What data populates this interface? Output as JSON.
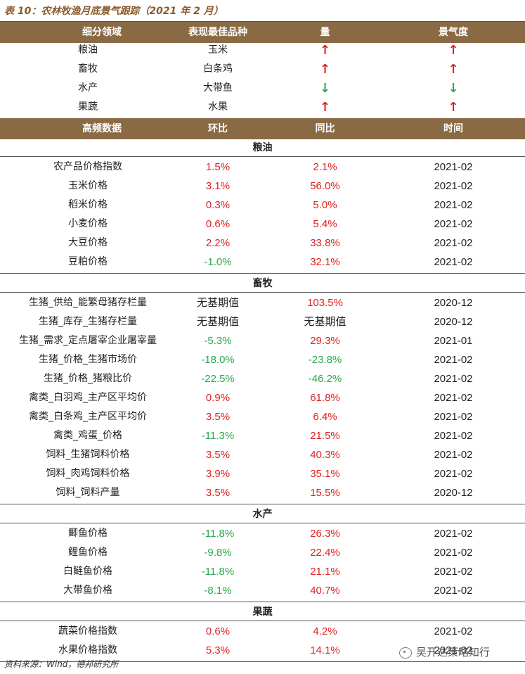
{
  "title": "表 10：农林牧渔月底景气跟踪（2021 年 2 月）",
  "summary": {
    "headers": [
      "细分领域",
      "表现最佳品种",
      "量",
      "景气度"
    ],
    "rows": [
      {
        "sector": "粮油",
        "best": "玉米",
        "volume": "↑",
        "volume_dir": "up",
        "climate": "↑",
        "climate_dir": "up"
      },
      {
        "sector": "畜牧",
        "best": "白条鸡",
        "volume": "↑",
        "volume_dir": "up",
        "climate": "↑",
        "climate_dir": "up"
      },
      {
        "sector": "水产",
        "best": "大带鱼",
        "volume": "↓",
        "volume_dir": "down",
        "climate": "↓",
        "climate_dir": "down"
      },
      {
        "sector": "果蔬",
        "best": "水果",
        "volume": "↑",
        "volume_dir": "up",
        "climate": "↑",
        "climate_dir": "up"
      }
    ]
  },
  "detail": {
    "headers": [
      "高频数据",
      "环比",
      "同比",
      "时间"
    ],
    "sections": [
      {
        "name": "粮油",
        "rows": [
          {
            "item": "农产品价格指数",
            "mom": "1.5%",
            "mom_color": "red",
            "yoy": "2.1%",
            "yoy_color": "red",
            "date": "2021-02"
          },
          {
            "item": "玉米价格",
            "mom": "3.1%",
            "mom_color": "red",
            "yoy": "56.0%",
            "yoy_color": "red",
            "date": "2021-02"
          },
          {
            "item": "稻米价格",
            "mom": "0.3%",
            "mom_color": "red",
            "yoy": "5.0%",
            "yoy_color": "red",
            "date": "2021-02"
          },
          {
            "item": "小麦价格",
            "mom": "0.6%",
            "mom_color": "red",
            "yoy": "5.4%",
            "yoy_color": "red",
            "date": "2021-02"
          },
          {
            "item": "大豆价格",
            "mom": "2.2%",
            "mom_color": "red",
            "yoy": "33.8%",
            "yoy_color": "red",
            "date": "2021-02"
          },
          {
            "item": "豆粕价格",
            "mom": "-1.0%",
            "mom_color": "green",
            "yoy": "32.1%",
            "yoy_color": "red",
            "date": "2021-02"
          }
        ]
      },
      {
        "name": "畜牧",
        "rows": [
          {
            "item": "生猪_供给_能繁母猪存栏量",
            "mom": "无基期值",
            "mom_color": "plain",
            "yoy": "103.5%",
            "yoy_color": "red",
            "date": "2020-12"
          },
          {
            "item": "生猪_库存_生猪存栏量",
            "mom": "无基期值",
            "mom_color": "plain",
            "yoy": "无基期值",
            "yoy_color": "plain",
            "date": "2020-12"
          },
          {
            "item": "生猪_需求_定点屠宰企业屠宰量",
            "mom": "-5.3%",
            "mom_color": "green",
            "yoy": "29.3%",
            "yoy_color": "red",
            "date": "2021-01"
          },
          {
            "item": "生猪_价格_生猪市场价",
            "mom": "-18.0%",
            "mom_color": "green",
            "yoy": "-23.8%",
            "yoy_color": "green",
            "date": "2021-02"
          },
          {
            "item": "生猪_价格_猪粮比价",
            "mom": "-22.5%",
            "mom_color": "green",
            "yoy": "-46.2%",
            "yoy_color": "green",
            "date": "2021-02"
          },
          {
            "item": "禽类_白羽鸡_主产区平均价",
            "mom": "0.9%",
            "mom_color": "red",
            "yoy": "61.8%",
            "yoy_color": "red",
            "date": "2021-02"
          },
          {
            "item": "禽类_白条鸡_主产区平均价",
            "mom": "3.5%",
            "mom_color": "red",
            "yoy": "6.4%",
            "yoy_color": "red",
            "date": "2021-02"
          },
          {
            "item": "禽类_鸡蛋_价格",
            "mom": "-11.3%",
            "mom_color": "green",
            "yoy": "21.5%",
            "yoy_color": "red",
            "date": "2021-02"
          },
          {
            "item": "饲料_生猪饲料价格",
            "mom": "3.5%",
            "mom_color": "red",
            "yoy": "40.3%",
            "yoy_color": "red",
            "date": "2021-02"
          },
          {
            "item": "饲料_肉鸡饲料价格",
            "mom": "3.9%",
            "mom_color": "red",
            "yoy": "35.1%",
            "yoy_color": "red",
            "date": "2021-02"
          },
          {
            "item": "饲料_饲料产量",
            "mom": "3.5%",
            "mom_color": "red",
            "yoy": "15.5%",
            "yoy_color": "red",
            "date": "2020-12"
          }
        ]
      },
      {
        "name": "水产",
        "rows": [
          {
            "item": "鲫鱼价格",
            "mom": "-11.8%",
            "mom_color": "green",
            "yoy": "26.3%",
            "yoy_color": "red",
            "date": "2021-02"
          },
          {
            "item": "鲤鱼价格",
            "mom": "-9.8%",
            "mom_color": "green",
            "yoy": "22.4%",
            "yoy_color": "red",
            "date": "2021-02"
          },
          {
            "item": "白鲢鱼价格",
            "mom": "-11.8%",
            "mom_color": "green",
            "yoy": "21.1%",
            "yoy_color": "red",
            "date": "2021-02"
          },
          {
            "item": "大带鱼价格",
            "mom": "-8.1%",
            "mom_color": "green",
            "yoy": "40.7%",
            "yoy_color": "red",
            "date": "2021-02"
          }
        ]
      },
      {
        "name": "果蔬",
        "rows": [
          {
            "item": "蔬菜价格指数",
            "mom": "0.6%",
            "mom_color": "red",
            "yoy": "4.2%",
            "yoy_color": "red",
            "date": "2021-02"
          },
          {
            "item": "水果价格指数",
            "mom": "5.3%",
            "mom_color": "red",
            "yoy": "14.1%",
            "yoy_color": "red",
            "date": "2021-02"
          }
        ]
      }
    ]
  },
  "source": "资料来源：Wind，德邦研究所",
  "watermark": "吴开达策略知行"
}
